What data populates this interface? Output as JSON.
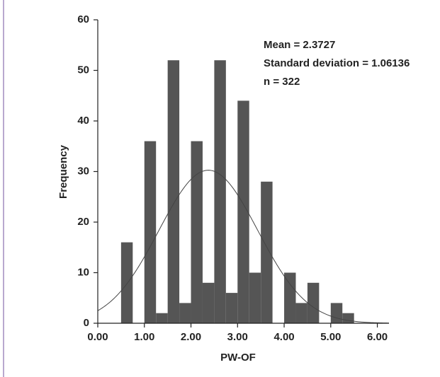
{
  "chart_data": {
    "type": "histogram",
    "bins": [
      0.5,
      0.75,
      1.0,
      1.25,
      1.5,
      1.75,
      2.0,
      2.25,
      2.5,
      2.75,
      3.0,
      3.25,
      3.5,
      3.75,
      4.0,
      4.25,
      4.5,
      4.75,
      5.0,
      5.25,
      5.5
    ],
    "values": [
      16,
      0,
      36,
      2,
      52,
      4,
      36,
      8,
      52,
      6,
      44,
      10,
      28,
      0,
      10,
      4,
      8,
      0,
      4,
      2
    ],
    "color": "#555555",
    "x_label": "PW-OF",
    "y_label": "Frequency",
    "xlim": [
      0,
      6.25
    ],
    "xticks": [
      {
        "value": 0,
        "label": "0.00"
      },
      {
        "value": 1,
        "label": "1.00"
      },
      {
        "value": 2,
        "label": "2.00"
      },
      {
        "value": 3,
        "label": "3.00"
      },
      {
        "value": 4,
        "label": "4.00"
      },
      {
        "value": 5,
        "label": "5.00"
      },
      {
        "value": 6,
        "label": "6.00"
      }
    ],
    "ylim": [
      0,
      60
    ],
    "yticks": [
      0,
      10,
      20,
      30,
      40,
      50,
      60
    ],
    "annotations": [
      "Mean = 2.3727",
      "Standard deviation = 1.06136",
      "n = 322"
    ],
    "curve": {
      "mean": 2.3727,
      "sd": 1.06136,
      "n": 322
    }
  }
}
